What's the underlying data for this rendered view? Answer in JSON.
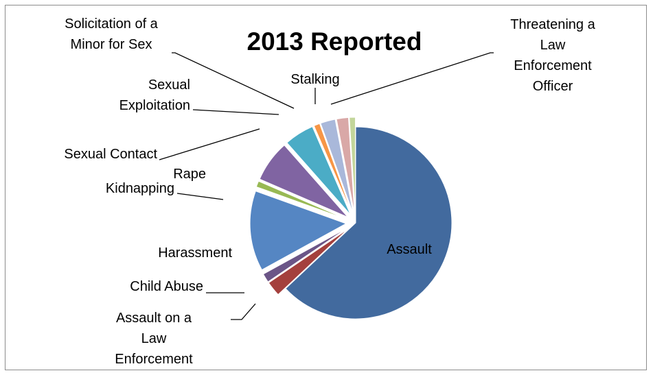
{
  "chart_data": {
    "type": "pie",
    "title": "2013 Reported",
    "exploded": true,
    "legend": "none",
    "slices": [
      {
        "name": "Assault",
        "label": [
          "Assault"
        ],
        "value": 63.0,
        "color": "#426A9E"
      },
      {
        "name": "Assault on a Law Enforcement Officer",
        "label": [
          "Assault on a",
          "Law",
          "Enforcement"
        ],
        "value": 2.5,
        "color": "#A4403D"
      },
      {
        "name": "Child Abuse",
        "label": [
          "Child Abuse"
        ],
        "value": 1.5,
        "color": "#6B5587"
      },
      {
        "name": "Harassment",
        "label": [
          "Harassment"
        ],
        "value": 13.5,
        "color": "#5586C3"
      },
      {
        "name": "Kidnapping",
        "label": [
          "Kidnapping"
        ],
        "value": 1.0,
        "color": "#98B954"
      },
      {
        "name": "Rape",
        "label": [
          "Rape"
        ],
        "value": 7.0,
        "color": "#8064A2"
      },
      {
        "name": "Sexual Contact",
        "label": [
          "Sexual Contact"
        ],
        "value": 5.0,
        "color": "#4BACC6"
      },
      {
        "name": "Sexual Exploitation",
        "label": [
          "Sexual",
          "Exploitation"
        ],
        "value": 1.0,
        "color": "#F79646"
      },
      {
        "name": "Solicitation of a Minor for Sex",
        "label": [
          "Solicitation of a",
          "Minor for Sex"
        ],
        "value": 2.5,
        "color": "#A9B8DA"
      },
      {
        "name": "Stalking",
        "label": [
          "Stalking"
        ],
        "value": 2.0,
        "color": "#D9A8A7"
      },
      {
        "name": "Threatening a Law Enforcement Officer",
        "label": [
          "Threatening a",
          "Law",
          "Enforcement",
          "Officer"
        ],
        "value": 1.0,
        "color": "#C3D69B"
      }
    ]
  }
}
